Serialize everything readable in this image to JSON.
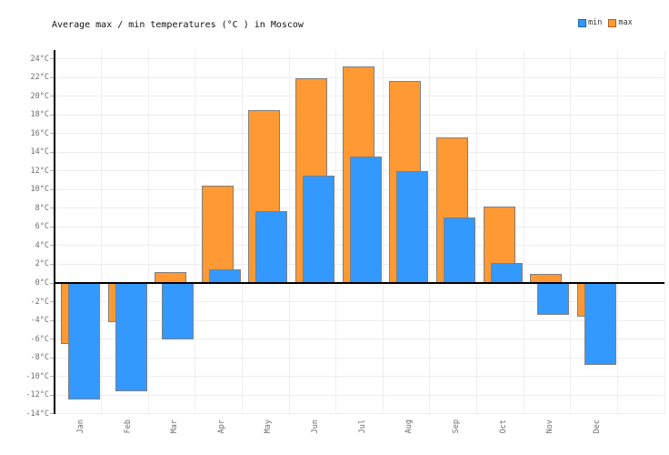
{
  "title": "Average max / min temperatures (°C ) in Moscow",
  "legend": [
    {
      "label": "min",
      "color": "#3399ff"
    },
    {
      "label": "max",
      "color": "#ff9933"
    }
  ],
  "colors": {
    "min_bar": "#3399ff",
    "max_bar": "#ff9933",
    "bar_border": "#808080",
    "gridline": "#ededed",
    "axis": "#000000",
    "tick_text": "#6e6e6e"
  },
  "chart_data": {
    "type": "bar",
    "title": "Average max / min temperatures (°C ) in Moscow",
    "categories": [
      "Jan",
      "Feb",
      "Mar",
      "Apr",
      "May",
      "Jun",
      "Jul",
      "Aug",
      "Sep",
      "Oct",
      "Nov",
      "Dec"
    ],
    "series": [
      {
        "name": "max",
        "color": "#ff9933",
        "values": [
          -6.5,
          -4.2,
          1.2,
          10.4,
          18.5,
          21.9,
          23.2,
          21.6,
          15.6,
          8.2,
          1.0,
          -3.6
        ]
      },
      {
        "name": "min",
        "color": "#3399ff",
        "values": [
          -12.5,
          -11.6,
          -6.0,
          1.5,
          7.7,
          11.5,
          13.5,
          12.0,
          7.0,
          2.1,
          -3.4,
          -8.8
        ]
      }
    ],
    "xlabel": "",
    "ylabel": "",
    "ylim": [
      -14,
      24
    ],
    "ytick_step": 2,
    "ytick_labels": [
      "24°C",
      "22°C",
      "20°C",
      "18°C",
      "16°C",
      "14°C",
      "12°C",
      "10°C",
      "8°C",
      "6°C",
      "4°C",
      "2°C",
      "0°C",
      "-2°C",
      "-4°C",
      "-6°C",
      "-8°C",
      "-10°C",
      "-12°C",
      "-14°C"
    ],
    "grid": true,
    "legend_position": "top-right",
    "x_labels_rotated": true,
    "zero_line": true
  }
}
